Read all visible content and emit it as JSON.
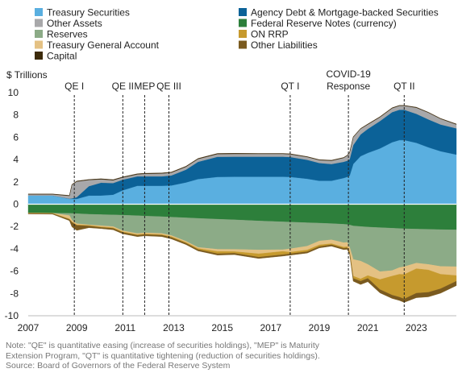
{
  "chart_data": {
    "type": "area",
    "ylabel": "$ Trillions",
    "xlim": [
      2007,
      2024.65
    ],
    "ylim": [
      -10,
      10
    ],
    "y_ticks": [
      10,
      8,
      6,
      4,
      2,
      0,
      -2,
      -4,
      -6,
      -8,
      -10
    ],
    "x_ticks": [
      "2007",
      "2009",
      "2011",
      "2013",
      "2015",
      "2017",
      "2019",
      "2021",
      "2023"
    ],
    "x": [
      2007,
      2008.0,
      2008.7,
      2008.8,
      2009.0,
      2009.5,
      2010.0,
      2010.5,
      2010.9,
      2011.5,
      2011.8,
      2012.5,
      2012.9,
      2013.5,
      2014.0,
      2014.8,
      2015.5,
      2016.5,
      2017.5,
      2017.8,
      2018.5,
      2019.0,
      2019.5,
      2020.0,
      2020.15,
      2020.25,
      2020.4,
      2020.7,
      2021.0,
      2021.5,
      2022.0,
      2022.3,
      2022.5,
      2023.0,
      2023.5,
      2024.0,
      2024.65
    ],
    "assets": [
      {
        "name": "Treasury Securities",
        "color": "#5aafe0",
        "values": [
          0.78,
          0.78,
          0.48,
          0.48,
          0.48,
          0.77,
          0.78,
          0.85,
          1.25,
          1.65,
          1.65,
          1.65,
          1.68,
          1.95,
          2.25,
          2.45,
          2.46,
          2.46,
          2.46,
          2.45,
          2.28,
          2.1,
          2.1,
          2.35,
          2.45,
          2.55,
          3.6,
          4.3,
          4.6,
          5.0,
          5.55,
          5.75,
          5.75,
          5.5,
          5.1,
          4.75,
          4.45
        ]
      },
      {
        "name": "Agency Debt & Mortgage-backed Securities",
        "color": "#0c6298",
        "values": [
          0.0,
          0.0,
          0.02,
          0.05,
          0.15,
          0.85,
          1.15,
          1.05,
          0.95,
          0.85,
          0.85,
          0.85,
          0.9,
          1.15,
          1.55,
          1.8,
          1.8,
          1.8,
          1.8,
          1.78,
          1.7,
          1.6,
          1.5,
          1.45,
          1.45,
          1.47,
          1.7,
          1.95,
          2.15,
          2.45,
          2.7,
          2.72,
          2.72,
          2.6,
          2.5,
          2.4,
          2.35
        ]
      },
      {
        "name": "Other Assets",
        "color": "#a8a8aa",
        "values": [
          0.1,
          0.1,
          0.25,
          1.2,
          1.4,
          0.55,
          0.3,
          0.25,
          0.2,
          0.18,
          0.22,
          0.25,
          0.25,
          0.25,
          0.25,
          0.25,
          0.25,
          0.25,
          0.25,
          0.25,
          0.25,
          0.25,
          0.3,
          0.35,
          0.45,
          0.6,
          0.7,
          0.5,
          0.4,
          0.35,
          0.35,
          0.35,
          0.35,
          0.55,
          0.6,
          0.5,
          0.35
        ]
      },
      {
        "name": "Capital",
        "color": "#3d2b0b",
        "values": [
          0.04,
          0.04,
          0.04,
          0.04,
          0.05,
          0.05,
          0.05,
          0.05,
          0.05,
          0.05,
          0.05,
          0.05,
          0.05,
          0.05,
          0.05,
          0.05,
          0.05,
          0.04,
          0.04,
          0.04,
          0.04,
          0.04,
          0.04,
          0.04,
          0.04,
          0.04,
          0.04,
          0.04,
          0.04,
          0.04,
          0.04,
          0.04,
          0.04,
          0.04,
          0.04,
          0.04,
          0.04
        ]
      }
    ],
    "liabilities": [
      {
        "name": "Federal Reserve Notes (currency)",
        "color": "#2d7f3b",
        "values": [
          -0.78,
          -0.8,
          -0.82,
          -0.83,
          -0.85,
          -0.9,
          -0.93,
          -0.96,
          -0.98,
          -1.03,
          -1.06,
          -1.12,
          -1.16,
          -1.22,
          -1.27,
          -1.34,
          -1.4,
          -1.5,
          -1.58,
          -1.6,
          -1.66,
          -1.7,
          -1.74,
          -1.8,
          -1.82,
          -1.86,
          -1.95,
          -2.0,
          -2.05,
          -2.1,
          -2.15,
          -2.18,
          -2.2,
          -2.23,
          -2.25,
          -2.28,
          -2.3
        ]
      },
      {
        "name": "Reserves",
        "color": "#8cab87",
        "values": [
          -0.01,
          -0.01,
          -0.2,
          -0.6,
          -0.9,
          -0.95,
          -1.0,
          -1.05,
          -1.4,
          -1.6,
          -1.5,
          -1.5,
          -1.65,
          -2.1,
          -2.6,
          -2.7,
          -2.65,
          -2.6,
          -2.5,
          -2.4,
          -2.1,
          -1.6,
          -1.45,
          -1.65,
          -1.6,
          -2.0,
          -3.0,
          -3.1,
          -3.35,
          -3.95,
          -3.8,
          -3.5,
          -3.4,
          -3.05,
          -3.15,
          -3.3,
          -3.3
        ]
      },
      {
        "name": "Treasury General Account",
        "color": "#e4c183",
        "values": [
          -0.005,
          -0.005,
          -0.3,
          -0.15,
          -0.1,
          -0.05,
          -0.1,
          -0.1,
          -0.1,
          -0.1,
          -0.1,
          -0.1,
          -0.1,
          -0.1,
          -0.1,
          -0.2,
          -0.2,
          -0.35,
          -0.15,
          -0.3,
          -0.35,
          -0.35,
          -0.35,
          -0.4,
          -0.4,
          -0.4,
          -1.5,
          -1.6,
          -1.0,
          -0.7,
          -0.5,
          -0.6,
          -0.7,
          -0.5,
          -0.5,
          -0.7,
          -0.8
        ]
      },
      {
        "name": "ON RRP",
        "color": "#c69a2e",
        "values": [
          -0.03,
          -0.03,
          -0.05,
          -0.05,
          -0.05,
          -0.06,
          -0.06,
          -0.06,
          -0.06,
          -0.06,
          -0.06,
          -0.06,
          -0.08,
          -0.08,
          -0.1,
          -0.2,
          -0.15,
          -0.3,
          -0.3,
          -0.15,
          -0.15,
          -0.15,
          -0.1,
          -0.1,
          -0.1,
          -0.1,
          -0.2,
          -0.2,
          -0.25,
          -0.9,
          -1.7,
          -2.05,
          -2.2,
          -2.2,
          -2.0,
          -1.3,
          -0.5
        ]
      },
      {
        "name": "Other Liabilities",
        "color": "#7a5a1f",
        "values": [
          -0.05,
          -0.05,
          -0.1,
          -0.4,
          -0.45,
          -0.15,
          -0.1,
          -0.12,
          -0.12,
          -0.12,
          -0.12,
          -0.12,
          -0.12,
          -0.12,
          -0.12,
          -0.12,
          -0.12,
          -0.12,
          -0.12,
          -0.12,
          -0.12,
          -0.12,
          -0.12,
          -0.12,
          -0.12,
          -0.12,
          -0.25,
          -0.3,
          -0.3,
          -0.3,
          -0.3,
          -0.3,
          -0.3,
          -0.4,
          -0.4,
          -0.4,
          -0.4
        ]
      }
    ],
    "legend": [
      {
        "name": "Treasury Securities",
        "color": "#5aafe0"
      },
      {
        "name": "Agency Debt & Mortgage-backed Securities",
        "color": "#0c6298"
      },
      {
        "name": "Other Assets",
        "color": "#a8a8aa"
      },
      {
        "name": "Federal Reserve Notes (currency)",
        "color": "#2d7f3b"
      },
      {
        "name": "Reserves",
        "color": "#8cab87"
      },
      {
        "name": "ON RRP",
        "color": "#c69a2e"
      },
      {
        "name": "Treasury General Account",
        "color": "#e4c183"
      },
      {
        "name": "Other Liabilities",
        "color": "#7a5a1f"
      },
      {
        "name": "Capital",
        "color": "#3d2b0b"
      }
    ],
    "annotations": [
      {
        "label": "QE I",
        "x": 2008.9
      },
      {
        "label": "QE II",
        "x": 2010.9
      },
      {
        "label": "MEP",
        "x": 2011.8
      },
      {
        "label": "QE III",
        "x": 2012.8
      },
      {
        "label": "QT I",
        "x": 2017.8
      },
      {
        "label": "COVID-19\nResponse",
        "x": 2020.2
      },
      {
        "label": "QT II",
        "x": 2022.5
      }
    ]
  },
  "notes": {
    "line1": "Note: \"QE\" is quantitative easing (increase of securities holdings), \"MEP\" is Maturity",
    "line2": "Extension Program, \"QT\" is quantitative tightening (reduction of securities holdings).",
    "source": "Source: Board of Governors of the Federal Reserve System"
  }
}
